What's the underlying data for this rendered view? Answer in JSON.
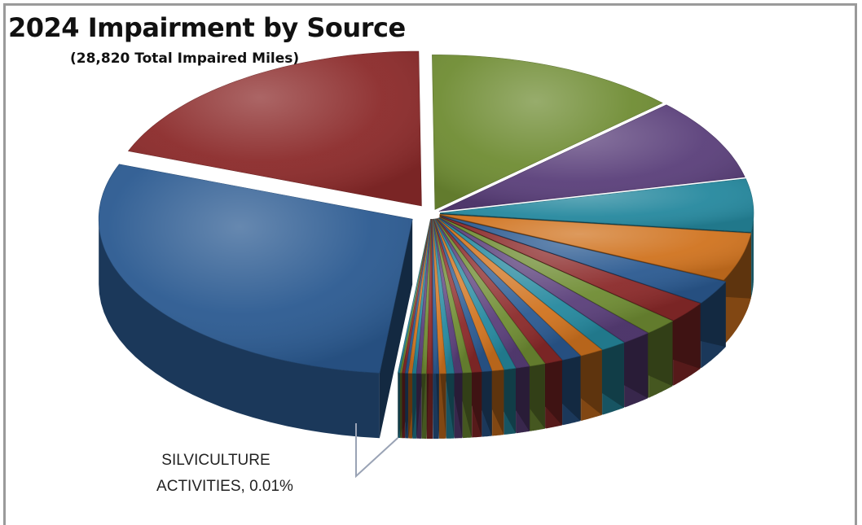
{
  "title": "2024 Impairment by Source",
  "subtitle": "(28,820 Total Impaired Miles)",
  "chart_data": {
    "type": "pie",
    "title": "2024 Impairment by Source",
    "subtitle": "(28,820 Total Impaired Miles)",
    "total": 28820,
    "style": "3d-exploded",
    "slices": [
      {
        "value": 29.0,
        "color": "#2b5a91"
      },
      {
        "value": 19.0,
        "color": "#8b2a2a"
      },
      {
        "value": 13.0,
        "color": "#6f8c33"
      },
      {
        "value": 8.5,
        "color": "#5a3f7a"
      },
      {
        "value": 5.5,
        "color": "#25889e"
      },
      {
        "value": 5.0,
        "color": "#d0731f"
      },
      {
        "value": 2.5,
        "color": "#2b5a91"
      },
      {
        "value": 2.2,
        "color": "#8b2a2a"
      },
      {
        "value": 1.7,
        "color": "#6f8c33"
      },
      {
        "value": 1.5,
        "color": "#5a3f7a"
      },
      {
        "value": 1.3,
        "color": "#25889e"
      },
      {
        "value": 1.2,
        "color": "#d0731f"
      },
      {
        "value": 1.0,
        "color": "#2b5a91"
      },
      {
        "value": 0.9,
        "color": "#8b2a2a"
      },
      {
        "value": 0.8,
        "color": "#6f8c33"
      },
      {
        "value": 0.7,
        "color": "#5a3f7a"
      },
      {
        "value": 0.6,
        "color": "#25889e"
      },
      {
        "value": 0.6,
        "color": "#d0731f"
      },
      {
        "value": 0.5,
        "color": "#2b5a91"
      },
      {
        "value": 0.5,
        "color": "#8b2a2a"
      },
      {
        "value": 0.45,
        "color": "#6f8c33"
      },
      {
        "value": 0.4,
        "color": "#5a3f7a"
      },
      {
        "value": 0.4,
        "color": "#25889e"
      },
      {
        "value": 0.35,
        "color": "#d0731f"
      },
      {
        "value": 0.3,
        "color": "#2b5a91"
      },
      {
        "value": 0.3,
        "color": "#8b2a2a"
      },
      {
        "value": 0.25,
        "color": "#6f8c33"
      },
      {
        "value": 0.25,
        "color": "#5a3f7a"
      },
      {
        "value": 0.2,
        "color": "#25889e"
      },
      {
        "value": 0.2,
        "color": "#d0731f"
      },
      {
        "value": 0.15,
        "color": "#2b5a91"
      },
      {
        "value": 0.15,
        "color": "#8b2a2a"
      },
      {
        "value": 0.1,
        "color": "#6f8c33"
      },
      {
        "value": 0.1,
        "color": "#25889e"
      },
      {
        "value": 0.01,
        "color": "#9aa3b5",
        "label": "SILVICULTURE ACTIVITIES, 0.01%"
      }
    ],
    "callout": {
      "line1": "SILVICULTURE",
      "line2": "ACTIVITIES, 0.01%"
    }
  }
}
